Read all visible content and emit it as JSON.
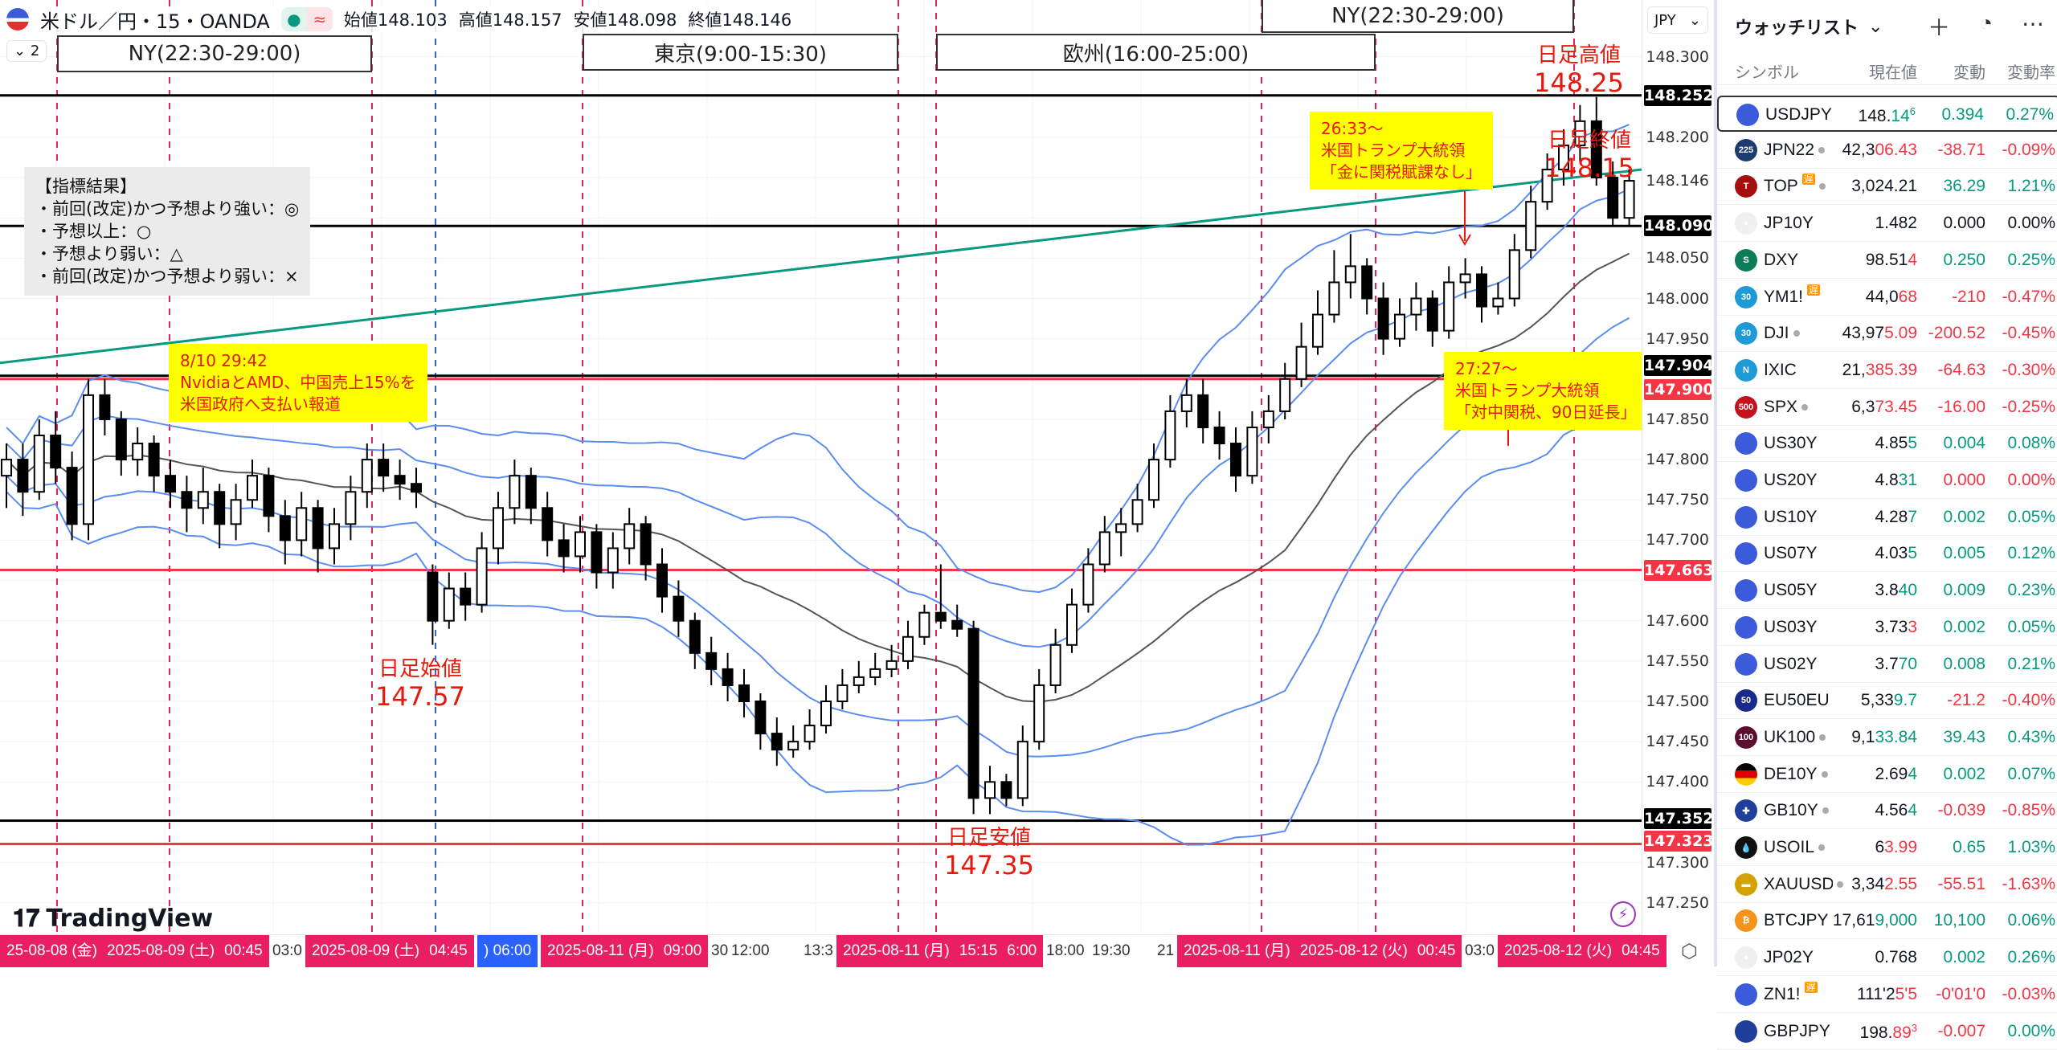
{
  "header": {
    "symbol_title": "米ドル／円・15・OANDA",
    "open_label": "始値",
    "open": "148.103",
    "high_label": "高値",
    "high": "148.157",
    "low_label": "安値",
    "low": "148.098",
    "close_label": "終値",
    "close": "148.146",
    "indicator_count": "2",
    "status_icons": [
      "market-open-dot",
      "delay-approx-icon"
    ]
  },
  "sessions": [
    {
      "label": "NY(22:30-29:00)"
    },
    {
      "label": "東京(9:00-15:30)"
    },
    {
      "label": "欧州(16:00-25:00)"
    },
    {
      "label": "NY(22:30-29:00)"
    }
  ],
  "indicator_note": {
    "lines": [
      "【指標結果】",
      "・前回(改定)かつ予想より強い：◎",
      "・予想以上：○",
      "・予想より弱い：△",
      "・前回(改定)かつ予想より弱い：×"
    ]
  },
  "news_notes": [
    {
      "lines": [
        "8/10 29:42",
        "NvidiaとAMD、中国売上15%を",
        "米国政府へ支払い報道"
      ]
    },
    {
      "lines": [
        "26:33～",
        "米国トランプ大統領",
        "「金に関税賦課なし」"
      ]
    },
    {
      "lines": [
        "27:27～",
        "米国トランプ大統領",
        "「対中関税、90日延長」"
      ]
    }
  ],
  "day_labels": {
    "high_label": "日足高値",
    "high": "148.25",
    "close_label": "日足終値",
    "close": "148.15",
    "open_label": "日足始値",
    "open": "147.57",
    "low_label": "日足安値",
    "low": "147.35"
  },
  "logo": "TradingView",
  "price_axis": {
    "currency": "JPY",
    "ticks": [
      "148.300",
      "148.200",
      "148.146",
      "148.050",
      "148.000",
      "147.950",
      "147.850",
      "147.800",
      "147.750",
      "147.700",
      "147.600",
      "147.550",
      "147.500",
      "147.450",
      "147.400",
      "147.300",
      "147.250"
    ],
    "tags": [
      {
        "value": "148.252",
        "color": "#000000"
      },
      {
        "value": "148.090",
        "color": "#000000"
      },
      {
        "value": "147.904",
        "color": "#000000"
      },
      {
        "value": "147.900",
        "color": "#f23645"
      },
      {
        "value": "147.663",
        "color": "#f23645"
      },
      {
        "value": "147.352",
        "color": "#000000"
      },
      {
        "value": "147.323",
        "color": "#f23645"
      }
    ]
  },
  "time_axis": {
    "tags": [
      {
        "parts": [
          "25-08-08 (金)",
          "2025-08-09 (土)",
          "00:45"
        ],
        "color": "#e91e63"
      },
      {
        "parts": [
          "2025-08-09 (土)",
          "04:45"
        ],
        "color": "#e91e63"
      },
      {
        "parts": [
          ") 06:00"
        ],
        "color": "#2962ff"
      },
      {
        "parts": [
          "2025-08-11 (月)",
          "09:00"
        ],
        "color": "#e91e63"
      },
      {
        "parts": [
          "2025-08-11 (月)",
          "15:15",
          "6:00"
        ],
        "color": "#e91e63"
      },
      {
        "parts": [
          "2025-08-11 (月)",
          "2025-08-12 (火)",
          "00:45"
        ],
        "color": "#e91e63"
      },
      {
        "parts": [
          "2025-08-12 (火)",
          "04:45"
        ],
        "color": "#e91e63"
      }
    ],
    "labels": [
      "03:0",
      "30",
      "12:00",
      "13:3",
      "18:00",
      "19:30",
      "21",
      "03:0"
    ]
  },
  "chart_data": {
    "type": "candlestick",
    "symbol": "USDJPY",
    "interval": "15",
    "ylim": [
      147.2,
      148.35
    ],
    "ohlc": [
      [
        147.78,
        147.82,
        147.74,
        147.8
      ],
      [
        147.8,
        147.82,
        147.73,
        147.76
      ],
      [
        147.76,
        147.85,
        147.75,
        147.83
      ],
      [
        147.83,
        147.86,
        147.77,
        147.79
      ],
      [
        147.79,
        147.81,
        147.7,
        147.72
      ],
      [
        147.72,
        147.9,
        147.7,
        147.88
      ],
      [
        147.88,
        147.9,
        147.83,
        147.85
      ],
      [
        147.85,
        147.86,
        147.78,
        147.8
      ],
      [
        147.8,
        147.84,
        147.78,
        147.82
      ],
      [
        147.82,
        147.83,
        147.76,
        147.78
      ],
      [
        147.78,
        147.8,
        147.74,
        147.76
      ],
      [
        147.76,
        147.78,
        147.71,
        147.74
      ],
      [
        147.74,
        147.79,
        147.72,
        147.76
      ],
      [
        147.76,
        147.77,
        147.69,
        147.72
      ],
      [
        147.72,
        147.77,
        147.7,
        147.75
      ],
      [
        147.75,
        147.8,
        147.74,
        147.78
      ],
      [
        147.78,
        147.79,
        147.71,
        147.73
      ],
      [
        147.73,
        147.75,
        147.67,
        147.7
      ],
      [
        147.7,
        147.76,
        147.68,
        147.74
      ],
      [
        147.74,
        147.75,
        147.66,
        147.69
      ],
      [
        147.69,
        147.74,
        147.67,
        147.72
      ],
      [
        147.72,
        147.78,
        147.7,
        147.76
      ],
      [
        147.76,
        147.82,
        147.74,
        147.8
      ],
      [
        147.8,
        147.82,
        147.76,
        147.78
      ],
      [
        147.78,
        147.8,
        147.75,
        147.77
      ],
      [
        147.77,
        147.79,
        147.74,
        147.76
      ],
      [
        147.66,
        147.67,
        147.57,
        147.6
      ],
      [
        147.6,
        147.66,
        147.59,
        147.64
      ],
      [
        147.64,
        147.66,
        147.6,
        147.62
      ],
      [
        147.62,
        147.71,
        147.61,
        147.69
      ],
      [
        147.69,
        147.76,
        147.67,
        147.74
      ],
      [
        147.74,
        147.8,
        147.72,
        147.78
      ],
      [
        147.78,
        147.79,
        147.72,
        147.74
      ],
      [
        147.74,
        147.76,
        147.68,
        147.7
      ],
      [
        147.7,
        147.72,
        147.66,
        147.68
      ],
      [
        147.68,
        147.73,
        147.66,
        147.71
      ],
      [
        147.71,
        147.72,
        147.64,
        147.66
      ],
      [
        147.66,
        147.71,
        147.64,
        147.69
      ],
      [
        147.69,
        147.74,
        147.67,
        147.72
      ],
      [
        147.72,
        147.73,
        147.65,
        147.67
      ],
      [
        147.67,
        147.69,
        147.61,
        147.63
      ],
      [
        147.63,
        147.65,
        147.58,
        147.6
      ],
      [
        147.6,
        147.61,
        147.54,
        147.56
      ],
      [
        147.56,
        147.58,
        147.52,
        147.54
      ],
      [
        147.54,
        147.56,
        147.5,
        147.52
      ],
      [
        147.52,
        147.54,
        147.48,
        147.5
      ],
      [
        147.5,
        147.51,
        147.44,
        147.46
      ],
      [
        147.46,
        147.48,
        147.42,
        147.44
      ],
      [
        147.44,
        147.47,
        147.43,
        147.45
      ],
      [
        147.45,
        147.49,
        147.44,
        147.47
      ],
      [
        147.47,
        147.52,
        147.46,
        147.5
      ],
      [
        147.5,
        147.54,
        147.49,
        147.52
      ],
      [
        147.52,
        147.55,
        147.51,
        147.53
      ],
      [
        147.53,
        147.56,
        147.52,
        147.54
      ],
      [
        147.54,
        147.57,
        147.53,
        147.55
      ],
      [
        147.55,
        147.6,
        147.54,
        147.58
      ],
      [
        147.58,
        147.62,
        147.57,
        147.61
      ],
      [
        147.61,
        147.67,
        147.59,
        147.6
      ],
      [
        147.6,
        147.62,
        147.58,
        147.59
      ],
      [
        147.59,
        147.6,
        147.36,
        147.38
      ],
      [
        147.38,
        147.42,
        147.36,
        147.4
      ],
      [
        147.4,
        147.41,
        147.37,
        147.38
      ],
      [
        147.38,
        147.47,
        147.37,
        147.45
      ],
      [
        147.45,
        147.54,
        147.44,
        147.52
      ],
      [
        147.52,
        147.59,
        147.51,
        147.57
      ],
      [
        147.57,
        147.64,
        147.56,
        147.62
      ],
      [
        147.62,
        147.69,
        147.61,
        147.67
      ],
      [
        147.67,
        147.73,
        147.66,
        147.71
      ],
      [
        147.71,
        147.74,
        147.68,
        147.72
      ],
      [
        147.72,
        147.77,
        147.71,
        147.75
      ],
      [
        147.75,
        147.82,
        147.74,
        147.8
      ],
      [
        147.8,
        147.88,
        147.79,
        147.86
      ],
      [
        147.86,
        147.9,
        147.84,
        147.88
      ],
      [
        147.88,
        147.9,
        147.82,
        147.84
      ],
      [
        147.84,
        147.86,
        147.8,
        147.82
      ],
      [
        147.82,
        147.84,
        147.76,
        147.78
      ],
      [
        147.78,
        147.86,
        147.77,
        147.84
      ],
      [
        147.84,
        147.88,
        147.82,
        147.86
      ],
      [
        147.86,
        147.92,
        147.85,
        147.9
      ],
      [
        147.9,
        147.97,
        147.89,
        147.94
      ],
      [
        147.94,
        148.01,
        147.93,
        147.98
      ],
      [
        147.98,
        148.06,
        147.97,
        148.02
      ],
      [
        148.02,
        148.08,
        148.0,
        148.04
      ],
      [
        148.04,
        148.05,
        147.98,
        148.0
      ],
      [
        148.0,
        148.02,
        147.93,
        147.95
      ],
      [
        147.95,
        148.0,
        147.94,
        147.98
      ],
      [
        147.98,
        148.02,
        147.96,
        148.0
      ],
      [
        148.0,
        148.01,
        147.94,
        147.96
      ],
      [
        147.96,
        148.04,
        147.95,
        148.02
      ],
      [
        148.02,
        148.05,
        148.0,
        148.03
      ],
      [
        148.03,
        148.04,
        147.97,
        147.99
      ],
      [
        147.99,
        148.02,
        147.98,
        148.0
      ],
      [
        148.0,
        148.08,
        147.99,
        148.06
      ],
      [
        148.06,
        148.14,
        148.05,
        148.12
      ],
      [
        148.12,
        148.18,
        148.11,
        148.16
      ],
      [
        148.16,
        148.21,
        148.14,
        148.19
      ],
      [
        148.19,
        148.24,
        148.17,
        148.22
      ],
      [
        148.22,
        148.25,
        148.14,
        148.15
      ],
      [
        148.15,
        148.17,
        148.09,
        148.1
      ],
      [
        148.1,
        148.16,
        148.09,
        148.146
      ]
    ],
    "hlines": [
      {
        "price": 148.252,
        "color": "#000000"
      },
      {
        "price": 148.09,
        "color": "#000000"
      },
      {
        "price": 147.904,
        "color": "#000000"
      },
      {
        "price": 147.9,
        "color": "#f23645"
      },
      {
        "price": 147.663,
        "color": "#f23645"
      },
      {
        "price": 147.352,
        "color": "#000000"
      },
      {
        "price": 147.323,
        "color": "#f23645"
      }
    ],
    "trendline": {
      "from_price": 147.92,
      "to_price": 148.16,
      "color": "#089981"
    },
    "bollinger": {
      "period": 20,
      "band_color": "#5b8def",
      "ma_color": "#555555"
    },
    "colors": {
      "up": "#ffffff",
      "down": "#000000",
      "outline": "#000000"
    }
  },
  "watchlist": {
    "title": "ウォッチリスト",
    "columns": [
      "シンボル",
      "現在値",
      "変動",
      "変動率"
    ],
    "rows": [
      {
        "sym": "USDJPY",
        "icon": "flag-us-jp",
        "ic_bg": "#3b5bdb",
        "ic_txt": "",
        "main": "148.",
        "chg_part": "14",
        "sup": "6",
        "pc": "up",
        "change": "0.394",
        "pct": "0.27%",
        "cc": "up",
        "sel": true
      },
      {
        "sym": "JPN22",
        "icon": "nikkei-225",
        "ic_bg": "#1e3a6e",
        "ic_txt": "225",
        "main": "42,3",
        "chg_part": "06.43",
        "pc": "dn",
        "change": "-38.71",
        "pct": "-0.09%",
        "cc": "dn",
        "dot": true
      },
      {
        "sym": "TOP",
        "icon": "topix",
        "ic_bg": "#a50e0e",
        "ic_txt": "T",
        "main": "3,024.21",
        "chg_part": "",
        "pc": "nt",
        "change": "36.29",
        "pct": "1.21%",
        "cc": "up",
        "dot": true,
        "delay": "遅"
      },
      {
        "sym": "JP10Y",
        "icon": "flag-jp",
        "ic_bg": "#f0f0f0",
        "ic_txt": "●",
        "main": "1.482",
        "chg_part": "",
        "pc": "nt",
        "change": "0.000",
        "pct": "0.00%",
        "cc": "nt"
      },
      {
        "sym": "DXY",
        "icon": "dollar-index",
        "ic_bg": "#0c7c59",
        "ic_txt": "S",
        "main": "98.51",
        "chg_part": "4",
        "pc": "dn",
        "change": "0.250",
        "pct": "0.25%",
        "cc": "up"
      },
      {
        "sym": "YM1!",
        "icon": "dow-30",
        "ic_bg": "#1e9bd7",
        "ic_txt": "30",
        "main": "44,0",
        "chg_part": "68",
        "pc": "dn",
        "change": "-210",
        "pct": "-0.47%",
        "cc": "dn",
        "delay": "遅"
      },
      {
        "sym": "DJI",
        "icon": "dow-30",
        "ic_bg": "#1e9bd7",
        "ic_txt": "30",
        "main": "43,97",
        "chg_part": "5.09",
        "pc": "dn",
        "change": "-200.52",
        "pct": "-0.45%",
        "cc": "dn",
        "dot": true
      },
      {
        "sym": "IXIC",
        "icon": "nasdaq",
        "ic_bg": "#1e9bd7",
        "ic_txt": "N",
        "main": "21,",
        "chg_part": "385.39",
        "pc": "dn",
        "change": "-64.63",
        "pct": "-0.30%",
        "cc": "dn"
      },
      {
        "sym": "SPX",
        "icon": "sp-500",
        "ic_bg": "#c3111e",
        "ic_txt": "500",
        "main": "6,3",
        "chg_part": "73.45",
        "pc": "dn",
        "change": "-16.00",
        "pct": "-0.25%",
        "cc": "dn",
        "dot": true
      },
      {
        "sym": "US30Y",
        "icon": "flag-us",
        "ic_bg": "#3b5bdb",
        "ic_txt": "",
        "main": "4.85",
        "chg_part": "5",
        "pc": "up",
        "change": "0.004",
        "pct": "0.08%",
        "cc": "up"
      },
      {
        "sym": "US20Y",
        "icon": "flag-us",
        "ic_bg": "#3b5bdb",
        "ic_txt": "",
        "main": "4.8",
        "chg_part": "31",
        "pc": "up",
        "change": "0.000",
        "pct": "0.00%",
        "cc": "dn"
      },
      {
        "sym": "US10Y",
        "icon": "flag-us",
        "ic_bg": "#3b5bdb",
        "ic_txt": "",
        "main": "4.28",
        "chg_part": "7",
        "pc": "up",
        "change": "0.002",
        "pct": "0.05%",
        "cc": "up"
      },
      {
        "sym": "US07Y",
        "icon": "flag-us",
        "ic_bg": "#3b5bdb",
        "ic_txt": "",
        "main": "4.03",
        "chg_part": "5",
        "pc": "up",
        "change": "0.005",
        "pct": "0.12%",
        "cc": "up"
      },
      {
        "sym": "US05Y",
        "icon": "flag-us",
        "ic_bg": "#3b5bdb",
        "ic_txt": "",
        "main": "3.8",
        "chg_part": "40",
        "pc": "up",
        "change": "0.009",
        "pct": "0.23%",
        "cc": "up"
      },
      {
        "sym": "US03Y",
        "icon": "flag-us",
        "ic_bg": "#3b5bdb",
        "ic_txt": "",
        "main": "3.73",
        "chg_part": "3",
        "pc": "dn",
        "change": "0.002",
        "pct": "0.05%",
        "cc": "up"
      },
      {
        "sym": "US02Y",
        "icon": "flag-us",
        "ic_bg": "#3b5bdb",
        "ic_txt": "",
        "main": "3.7",
        "chg_part": "70",
        "pc": "up",
        "change": "0.008",
        "pct": "0.21%",
        "cc": "up"
      },
      {
        "sym": "EU50EU",
        "icon": "euro-stoxx-50",
        "ic_bg": "#1a2a8a",
        "ic_txt": "50",
        "main": "5,33",
        "chg_part": "9.7",
        "pc": "up",
        "change": "-21.2",
        "pct": "-0.40%",
        "cc": "dn"
      },
      {
        "sym": "UK100",
        "icon": "ftse-100",
        "ic_bg": "#5a0f2e",
        "ic_txt": "100",
        "main": "9,1",
        "chg_part": "33.84",
        "pc": "up",
        "change": "39.43",
        "pct": "0.43%",
        "cc": "up",
        "dot": true
      },
      {
        "sym": "DE10Y",
        "icon": "flag-de",
        "ic_bg": "linear-gradient(#000 0 33%,#d00 33% 66%,#fc0 66%)",
        "ic_txt": "",
        "main": "2.69",
        "chg_part": "4",
        "pc": "up",
        "change": "0.002",
        "pct": "0.07%",
        "cc": "up",
        "dot": true
      },
      {
        "sym": "GB10Y",
        "icon": "flag-gb",
        "ic_bg": "#1f3f9a",
        "ic_txt": "✚",
        "main": "4.56",
        "chg_part": "4",
        "pc": "up",
        "change": "-0.039",
        "pct": "-0.85%",
        "cc": "dn",
        "dot": true
      },
      {
        "sym": "USOIL",
        "icon": "oil-drop",
        "ic_bg": "#111111",
        "ic_txt": "💧",
        "main": "6",
        "chg_part": "3.99",
        "pc": "dn",
        "change": "0.65",
        "pct": "1.03%",
        "cc": "up",
        "dot": true
      },
      {
        "sym": "XAUUSD",
        "icon": "gold-bars",
        "ic_bg": "#d4a106",
        "ic_txt": "▬",
        "main": "3,34",
        "chg_part": "2.55",
        "pc": "dn",
        "change": "-55.51",
        "pct": "-1.63%",
        "cc": "dn",
        "dot": true
      },
      {
        "sym": "BTCJPY",
        "icon": "bitcoin",
        "ic_bg": "#f7931a",
        "ic_txt": "₿",
        "main": "17,61",
        "chg_part": "9,000",
        "pc": "up",
        "change": "10,100",
        "pct": "0.06%",
        "cc": "up"
      },
      {
        "sym": "JP02Y",
        "icon": "flag-jp",
        "ic_bg": "#f0f0f0",
        "ic_txt": "●",
        "main": "0.768",
        "chg_part": "",
        "pc": "nt",
        "change": "0.002",
        "pct": "0.26%",
        "cc": "up"
      },
      {
        "sym": "ZN1!",
        "icon": "flag-us",
        "ic_bg": "#3b5bdb",
        "ic_txt": "",
        "main": "111'2",
        "chg_part": "5'5",
        "pc": "dn",
        "change": "-0'01'0",
        "pct": "-0.03%",
        "cc": "dn",
        "delay": "遅"
      },
      {
        "sym": "GBPJPY",
        "icon": "flag-gb-jp",
        "ic_bg": "#1f3f9a",
        "ic_txt": "",
        "main": "198.",
        "chg_part": "89",
        "sup": "3",
        "pc": "dn",
        "change": "-0.007",
        "pct": "0.00%",
        "cc": "dn",
        "pct_c": "up"
      }
    ]
  }
}
